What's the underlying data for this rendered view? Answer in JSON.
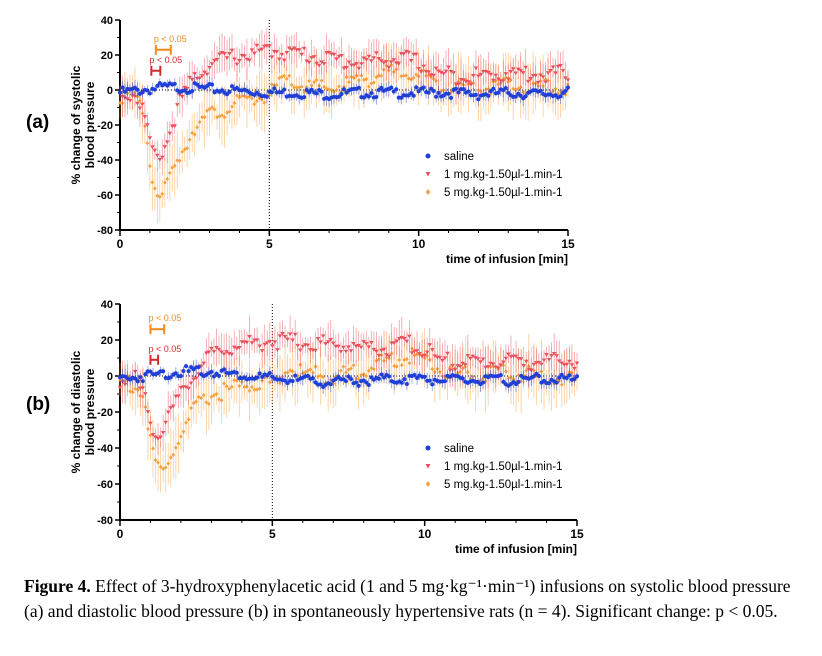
{
  "caption": {
    "label": "Figure 4.",
    "text": "Effect of 3-hydroxyphenylacetic acid (1 and 5 mg·kg⁻¹·min⁻¹) infusions on systolic blood pressure (a) and diastolic blood pressure (b) in spontaneously hypertensive rats (n = 4). Significant change: p < 0.05."
  },
  "colors": {
    "saline": "#1f3fd6",
    "dose1": "#e8505b",
    "dose5": "#f5a03c",
    "bracket1": "#d42a2a",
    "bracket5": "#f08a1c"
  },
  "chart_data": [
    {
      "panel_label": "(a)",
      "type": "scatter",
      "xlabel": "time of infusion [min]",
      "ylabel_line1": "% change of systolic",
      "ylabel_line2": "blood pressure",
      "xlim": [
        0,
        15
      ],
      "ylim": [
        -80,
        40
      ],
      "xticks": [
        0,
        5,
        10,
        15
      ],
      "yticks": [
        40,
        20,
        0,
        -20,
        -40,
        -60,
        -80
      ],
      "vline_x": 5,
      "legend_position": "center-right",
      "annotations": [
        {
          "text": "p < 0.05",
          "series": "5 mg",
          "x_start": 1.2,
          "x_end": 1.7,
          "y": 23
        },
        {
          "text": "p < 0.05",
          "series": "1 mg",
          "x_start": 1.05,
          "x_end": 1.35,
          "y": 11
        }
      ],
      "series": [
        {
          "name": "saline",
          "marker": "circle",
          "x": [
            0,
            0.5,
            1,
            1.5,
            2,
            3,
            4,
            5,
            6,
            7,
            8,
            9,
            10,
            11,
            12,
            13,
            14,
            15
          ],
          "y": [
            0,
            1,
            2,
            3,
            3,
            2,
            1,
            0,
            0,
            -1,
            0,
            0,
            0,
            0,
            -1,
            0,
            -1,
            0
          ],
          "err": 3
        },
        {
          "name": "1 mg.kg-1.50µl-1.min-1",
          "marker": "triangle-down",
          "x": [
            0,
            0.5,
            0.8,
            1,
            1.2,
            1.5,
            2,
            2.5,
            3,
            3.5,
            4,
            4.5,
            5,
            6,
            7,
            8,
            9,
            9.5,
            10,
            10.5,
            11,
            12,
            13,
            14,
            15
          ],
          "y": [
            0,
            0,
            -10,
            -28,
            -38,
            -30,
            -5,
            10,
            17,
            20,
            22,
            23,
            25,
            23,
            20,
            18,
            20,
            20,
            18,
            12,
            11,
            10,
            12,
            11,
            12
          ],
          "err": 8
        },
        {
          "name": "5 mg.kg-1.50µl-1.min-1",
          "marker": "diamond",
          "x": [
            0,
            0.5,
            0.8,
            1,
            1.2,
            1.4,
            1.6,
            2,
            2.5,
            3,
            4,
            5,
            5.5,
            6,
            7,
            8,
            9,
            9.5,
            10,
            10.5,
            11,
            12,
            13,
            14,
            15
          ],
          "y": [
            0,
            -2,
            -10,
            -40,
            -55,
            -60,
            -50,
            -35,
            -18,
            -12,
            -5,
            0,
            8,
            5,
            3,
            8,
            12,
            14,
            12,
            6,
            5,
            4,
            5,
            4,
            4
          ],
          "err": 12
        }
      ]
    },
    {
      "panel_label": "(b)",
      "type": "scatter",
      "xlabel": "time of infusion [min]",
      "ylabel_line1": "% change of diastolic",
      "ylabel_line2": "blood pressure",
      "xlim": [
        0,
        15
      ],
      "ylim": [
        -80,
        40
      ],
      "xticks": [
        0,
        5,
        10,
        15
      ],
      "yticks": [
        40,
        20,
        0,
        -20,
        -40,
        -60,
        -80
      ],
      "vline_x": 5,
      "legend_position": "center-right",
      "annotations": [
        {
          "text": "p < 0.05",
          "series": "5 mg",
          "x_start": 1.0,
          "x_end": 1.45,
          "y": 26
        },
        {
          "text": "p < 0.05",
          "series": "1 mg",
          "x_start": 1.0,
          "x_end": 1.25,
          "y": 9
        }
      ],
      "series": [
        {
          "name": "saline",
          "marker": "circle",
          "x": [
            0,
            0.5,
            1,
            1.5,
            2,
            3,
            4,
            5,
            6,
            7,
            8,
            9,
            10,
            11,
            12,
            13,
            14,
            15
          ],
          "y": [
            0,
            1,
            2,
            3,
            4,
            4,
            2,
            0,
            -1,
            -2,
            -1,
            0,
            0,
            -1,
            -1,
            -1,
            0,
            -1
          ],
          "err": 3
        },
        {
          "name": "1 mg.kg-1.50µl-1.min-1",
          "marker": "triangle-down",
          "x": [
            0,
            0.5,
            0.8,
            1,
            1.2,
            1.5,
            2,
            2.5,
            3,
            3.5,
            4,
            4.5,
            5,
            6,
            7,
            8,
            9,
            9.5,
            10,
            10.5,
            11,
            12,
            13,
            14,
            15
          ],
          "y": [
            0,
            0,
            -8,
            -22,
            -30,
            -25,
            -8,
            5,
            14,
            18,
            20,
            21,
            22,
            21,
            20,
            18,
            18,
            20,
            17,
            11,
            10,
            10,
            11,
            10,
            11
          ],
          "err": 8
        },
        {
          "name": "5 mg.kg-1.50µl-1.min-1",
          "marker": "diamond",
          "x": [
            0,
            0.5,
            0.8,
            1,
            1.2,
            1.4,
            1.6,
            2,
            2.5,
            3,
            4,
            5,
            5.5,
            6,
            7,
            8,
            9,
            9.5,
            10,
            10.5,
            11,
            12,
            13,
            14,
            15
          ],
          "y": [
            0,
            -3,
            -10,
            -35,
            -48,
            -52,
            -45,
            -30,
            -15,
            -8,
            -3,
            -1,
            6,
            4,
            2,
            6,
            12,
            14,
            12,
            6,
            4,
            3,
            4,
            2,
            0
          ],
          "err": 12
        }
      ]
    }
  ]
}
